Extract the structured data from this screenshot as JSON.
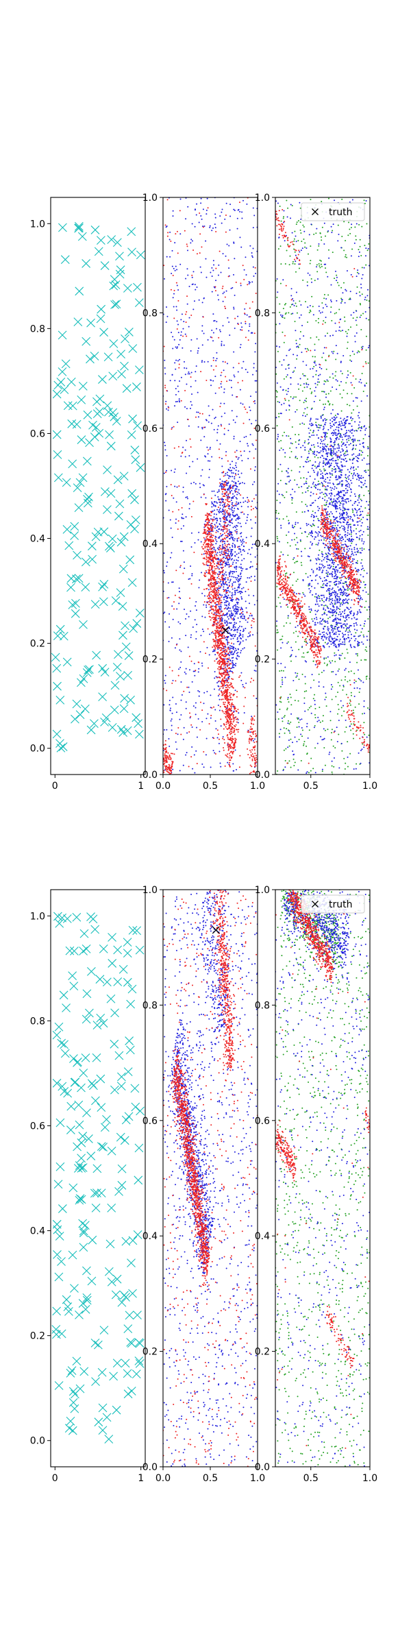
{
  "chart_data": [
    {
      "type": "scatter",
      "panel": "top-left",
      "marker": "x",
      "color": "#17bebb",
      "xlim": [
        -0.05,
        1.05
      ],
      "ylim": [
        -0.05,
        1.05
      ],
      "xticks": [
        0,
        1
      ],
      "xtick_labels": [
        "0",
        "1"
      ],
      "yticks": [
        0.0,
        0.2,
        0.4,
        0.6,
        0.8,
        1.0
      ],
      "ytick_labels": [
        "0.0",
        "0.2",
        "0.4",
        "0.6",
        "0.8",
        "1.0"
      ],
      "n_points": 200,
      "seed": 11
    },
    {
      "type": "scatter",
      "panel": "top-middle",
      "xlim": [
        0,
        1
      ],
      "ylim": [
        0,
        1
      ],
      "xticks": [
        0.0,
        0.5,
        1.0
      ],
      "xtick_labels": [
        "0.0",
        "0.5",
        "1.0"
      ],
      "yticks": [
        0.0,
        0.2,
        0.4,
        0.6,
        0.8,
        1.0
      ],
      "ytick_labels": [
        "0.0",
        "0.2",
        "0.4",
        "0.6",
        "0.8",
        "1.0"
      ],
      "truth": [
        0.66,
        0.25
      ],
      "seed": 21,
      "series": [
        {
          "color": "#1f1fdd",
          "uniform": 900,
          "bands": [
            {
              "p": [
                0.7,
                0.35
              ],
              "d": [
                -0.25,
                0.75
              ],
              "len": 0.35,
              "w": 0.09,
              "n": 1000
            }
          ]
        },
        {
          "color": "#ee2222",
          "uniform": 300,
          "bands": [
            {
              "p": [
                0.6,
                0.24
              ],
              "d": [
                0.6,
                -0.8
              ],
              "len": 0.5,
              "w": 0.03,
              "n": 1200
            },
            {
              "p": [
                0.65,
                0.42
              ],
              "d": [
                0.2,
                0.98
              ],
              "len": 0.2,
              "w": 0.03,
              "n": 150
            },
            {
              "p": [
                0.05,
                0.02
              ],
              "d": [
                1,
                -0.2
              ],
              "len": 0.1,
              "w": 0.015,
              "n": 120
            },
            {
              "p": [
                0.95,
                0.05
              ],
              "d": [
                0.5,
                -0.86
              ],
              "len": 0.1,
              "w": 0.02,
              "n": 80
            }
          ]
        }
      ]
    },
    {
      "type": "scatter",
      "panel": "top-right",
      "xlim": [
        0.2,
        1
      ],
      "ylim": [
        0,
        1
      ],
      "xticks": [
        0.5,
        1.0
      ],
      "xtick_labels": [
        "0.5",
        "1.0"
      ],
      "yticks": [
        0.0,
        0.2,
        0.4,
        0.6,
        0.8,
        1.0
      ],
      "ytick_labels": [
        "0.0",
        "0.2",
        "0.4",
        "0.6",
        "0.8",
        "1.0"
      ],
      "legend": {
        "label": "truth",
        "marker": "x",
        "position": "upper right"
      },
      "seed": 31,
      "series": [
        {
          "color": "#22a022",
          "uniform": 900,
          "bands": []
        },
        {
          "color": "#1f1fdd",
          "uniform": 700,
          "bands": [
            {
              "p": [
                0.72,
                0.42
              ],
              "d": [
                0,
                1
              ],
              "len": 0.4,
              "w": 0.12,
              "n": 1600
            }
          ]
        },
        {
          "color": "#ee2222",
          "uniform": 40,
          "bands": [
            {
              "p": [
                0.75,
                0.38
              ],
              "d": [
                0.92,
                -0.38
              ],
              "len": 0.35,
              "w": 0.012,
              "n": 450
            },
            {
              "p": [
                0.4,
                0.28
              ],
              "d": [
                0.92,
                -0.38
              ],
              "len": 0.4,
              "w": 0.013,
              "n": 450
            },
            {
              "p": [
                0.3,
                0.93
              ],
              "d": [
                0.92,
                -0.38
              ],
              "len": 0.25,
              "w": 0.008,
              "n": 60
            },
            {
              "p": [
                0.9,
                0.08
              ],
              "d": [
                0.92,
                -0.38
              ],
              "len": 0.2,
              "w": 0.008,
              "n": 60
            }
          ]
        }
      ]
    },
    {
      "type": "scatter",
      "panel": "bottom-left",
      "marker": "x",
      "color": "#17bebb",
      "xlim": [
        -0.05,
        1.05
      ],
      "ylim": [
        -0.05,
        1.05
      ],
      "xticks": [
        0,
        1
      ],
      "xtick_labels": [
        "0",
        "1"
      ],
      "yticks": [
        0.0,
        0.2,
        0.4,
        0.6,
        0.8,
        1.0
      ],
      "ytick_labels": [
        "0.0",
        "0.2",
        "0.4",
        "0.6",
        "0.8",
        "1.0"
      ],
      "n_points": 200,
      "seed": 41
    },
    {
      "type": "scatter",
      "panel": "bottom-middle",
      "xlim": [
        0,
        1
      ],
      "ylim": [
        0,
        1
      ],
      "xticks": [
        0.0,
        0.5,
        1.0
      ],
      "xtick_labels": [
        "0.0",
        "0.5",
        "1.0"
      ],
      "yticks": [
        0.0,
        0.2,
        0.4,
        0.6,
        0.8,
        1.0
      ],
      "ytick_labels": [
        "0.0",
        "0.2",
        "0.4",
        "0.6",
        "0.8",
        "1.0"
      ],
      "truth": [
        0.56,
        0.93
      ],
      "seed": 51,
      "series": [
        {
          "color": "#1f1fdd",
          "uniform": 900,
          "bands": [
            {
              "p": [
                0.3,
                0.55
              ],
              "d": [
                0.7,
                -0.71
              ],
              "len": 0.5,
              "w": 0.05,
              "n": 900
            },
            {
              "p": [
                0.55,
                0.88
              ],
              "d": [
                0.5,
                -0.86
              ],
              "len": 0.3,
              "w": 0.06,
              "n": 300
            }
          ]
        },
        {
          "color": "#ee2222",
          "uniform": 450,
          "bands": [
            {
              "p": [
                0.3,
                0.52
              ],
              "d": [
                0.7,
                -0.71
              ],
              "len": 0.5,
              "w": 0.025,
              "n": 1100
            },
            {
              "p": [
                0.65,
                0.85
              ],
              "d": [
                0.4,
                -0.9
              ],
              "len": 0.35,
              "w": 0.03,
              "n": 500
            }
          ]
        }
      ]
    },
    {
      "type": "scatter",
      "panel": "bottom-right",
      "xlim": [
        0.2,
        1
      ],
      "ylim": [
        0,
        1
      ],
      "xticks": [
        0.5,
        1.0
      ],
      "xtick_labels": [
        "0.5",
        "1.0"
      ],
      "yticks": [
        0.0,
        0.2,
        0.4,
        0.6,
        0.8,
        1.0
      ],
      "ytick_labels": [
        "0.0",
        "0.2",
        "0.4",
        "0.6",
        "0.8",
        "1.0"
      ],
      "legend": {
        "label": "truth",
        "marker": "x",
        "position": "upper right"
      },
      "seed": 61,
      "series": [
        {
          "color": "#22a022",
          "uniform": 900,
          "bands": [
            {
              "p": [
                0.5,
                0.95
              ],
              "d": [
                1,
                -0.2
              ],
              "len": 0.5,
              "w": 0.03,
              "n": 400
            }
          ]
        },
        {
          "color": "#1f1fdd",
          "uniform": 500,
          "bands": [
            {
              "p": [
                0.55,
                0.95
              ],
              "d": [
                1,
                -0.15
              ],
              "len": 0.55,
              "w": 0.035,
              "n": 700
            }
          ]
        },
        {
          "color": "#ee2222",
          "uniform": 40,
          "bands": [
            {
              "p": [
                0.5,
                0.93
              ],
              "d": [
                0.93,
                -0.36
              ],
              "len": 0.4,
              "w": 0.015,
              "n": 600
            },
            {
              "p": [
                0.28,
                0.55
              ],
              "d": [
                0.93,
                -0.36
              ],
              "len": 0.2,
              "w": 0.012,
              "n": 180
            },
            {
              "p": [
                0.75,
                0.22
              ],
              "d": [
                0.93,
                -0.36
              ],
              "len": 0.25,
              "w": 0.008,
              "n": 80
            },
            {
              "p": [
                0.98,
                0.6
              ],
              "d": [
                0.93,
                -0.36
              ],
              "len": 0.05,
              "w": 0.008,
              "n": 25
            }
          ]
        }
      ]
    }
  ]
}
